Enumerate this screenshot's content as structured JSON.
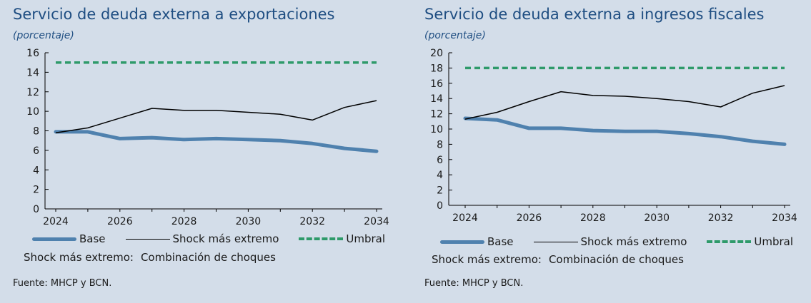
{
  "colors": {
    "background": "#d3dde9",
    "title": "#1f4e82",
    "base": "#4f81ae",
    "shock": "#000000",
    "umbral": "#2e9a6a"
  },
  "chart_data": [
    {
      "type": "line",
      "title": "Servicio de deuda externa a exportaciones",
      "subtitle": "(porcentaje)",
      "x": [
        2024,
        2025,
        2026,
        2027,
        2028,
        2029,
        2030,
        2031,
        2032,
        2033,
        2034
      ],
      "xticks": [
        "2024",
        "2026",
        "2028",
        "2030",
        "2032",
        "2034"
      ],
      "yticks": [
        "0",
        "2",
        "4",
        "6",
        "8",
        "10",
        "12",
        "14",
        "16"
      ],
      "ylim": [
        0,
        16
      ],
      "grid": false,
      "legend_position": "bottom",
      "series": [
        {
          "name": "Base",
          "values": [
            7.9,
            7.9,
            7.2,
            7.3,
            7.1,
            7.2,
            7.1,
            7.0,
            6.7,
            6.2,
            5.9
          ]
        },
        {
          "name": "Shock más extremo",
          "values": [
            7.8,
            8.3,
            9.3,
            10.3,
            10.1,
            10.1,
            9.9,
            9.7,
            9.1,
            10.4,
            11.1
          ]
        },
        {
          "name": "Umbral",
          "values": [
            15,
            15,
            15,
            15,
            15,
            15,
            15,
            15,
            15,
            15,
            15
          ]
        }
      ],
      "note_label": "Shock más extremo:",
      "note_value": "Combinación de choques",
      "source": "Fuente: MHCP y BCN."
    },
    {
      "type": "line",
      "title": "Servicio de deuda externa a ingresos fiscales",
      "subtitle": "(porcentaje)",
      "x": [
        2024,
        2025,
        2026,
        2027,
        2028,
        2029,
        2030,
        2031,
        2032,
        2033,
        2034
      ],
      "xticks": [
        "2024",
        "2026",
        "2028",
        "2030",
        "2032",
        "2034"
      ],
      "yticks": [
        "0",
        "2",
        "4",
        "6",
        "8",
        "10",
        "12",
        "14",
        "16",
        "18",
        "20"
      ],
      "ylim": [
        0,
        20
      ],
      "grid": false,
      "legend_position": "bottom",
      "series": [
        {
          "name": "Base",
          "values": [
            11.4,
            11.2,
            10.1,
            10.1,
            9.8,
            9.7,
            9.7,
            9.4,
            9.0,
            8.4,
            8.0
          ]
        },
        {
          "name": "Shock más extremo",
          "values": [
            11.3,
            12.2,
            13.6,
            14.9,
            14.4,
            14.3,
            14.0,
            13.6,
            12.9,
            14.7,
            15.7
          ]
        },
        {
          "name": "Umbral",
          "values": [
            18,
            18,
            18,
            18,
            18,
            18,
            18,
            18,
            18,
            18,
            18
          ]
        }
      ],
      "note_label": "Shock más extremo:",
      "note_value": "Combinación de choques",
      "source": "Fuente: MHCP y BCN."
    }
  ]
}
